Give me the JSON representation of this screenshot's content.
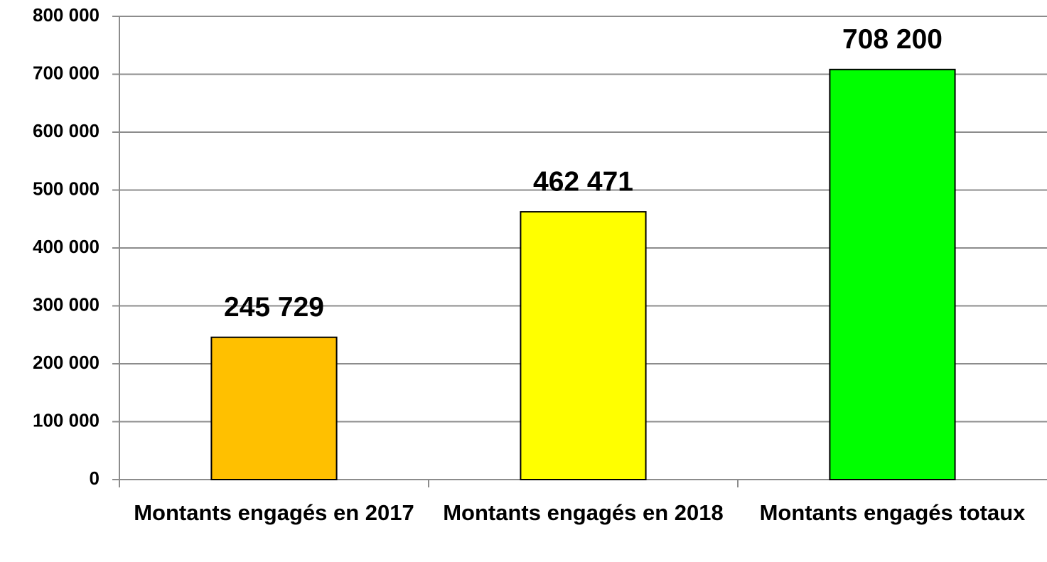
{
  "chart_data": {
    "type": "bar",
    "categories": [
      "Montants engagés en 2017",
      "Montants engagés en 2018",
      "Montants engagés totaux"
    ],
    "values": [
      245729,
      462471,
      708200
    ],
    "value_labels": [
      "245 729",
      "462 471",
      "708 200"
    ],
    "colors": [
      "#ffc000",
      "#ffff00",
      "#00ff00"
    ],
    "ylim": [
      0,
      800000
    ],
    "yticks": [
      0,
      {
        "value": 100000,
        "label": "100 000"
      },
      {
        "value": 200000,
        "label": "200 000"
      },
      {
        "value": 300000,
        "label": "300 000"
      },
      {
        "value": 400000,
        "label": "400 000"
      },
      {
        "value": 500000,
        "label": "500 000"
      },
      {
        "value": 600000,
        "label": "600 000"
      },
      {
        "value": 700000,
        "label": "700 000"
      },
      {
        "value": 800000,
        "label": "800 000"
      }
    ],
    "grid": true
  }
}
